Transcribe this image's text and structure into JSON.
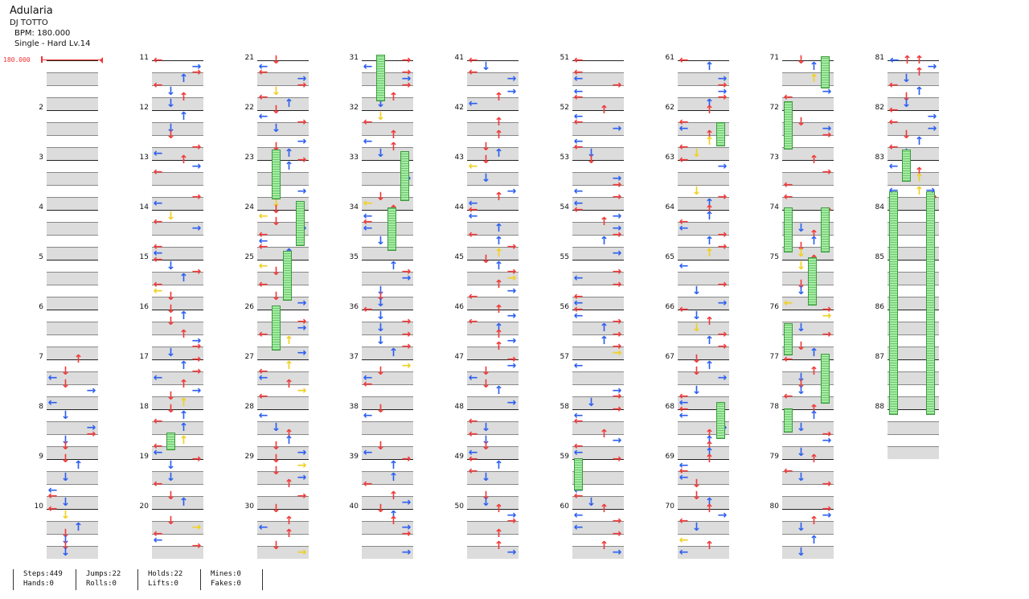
{
  "song": {
    "title": "Adularia",
    "artist": "DJ TOTTO",
    "bpm_text": "BPM: 180.000",
    "difficulty_text": "Single - Hard  Lv.14"
  },
  "bpm_marker": "180.000",
  "measure_labels": [
    "2",
    "3",
    "4",
    "5",
    "6",
    "7",
    "8",
    "9",
    "10",
    "11",
    "12",
    "13",
    "14",
    "15",
    "16",
    "17",
    "18",
    "19",
    "20",
    "21",
    "22",
    "23",
    "24",
    "25",
    "26",
    "27",
    "28",
    "29",
    "30",
    "31",
    "32",
    "33",
    "34",
    "35",
    "36",
    "37",
    "38",
    "39",
    "40",
    "41",
    "42",
    "43",
    "44",
    "45",
    "46",
    "47",
    "48",
    "49",
    "50",
    "51",
    "52",
    "53",
    "54",
    "55",
    "56",
    "57",
    "58",
    "59",
    "60",
    "61",
    "62",
    "63",
    "64",
    "65",
    "66",
    "67",
    "68",
    "69",
    "70",
    "71",
    "72",
    "73",
    "74",
    "75",
    "76",
    "77",
    "78",
    "79",
    "80",
    "81",
    "82",
    "83",
    "84",
    "85",
    "86",
    "87",
    "88"
  ],
  "stats": {
    "steps": "Steps:449",
    "hands": "Hands:0",
    "jumps": "Jumps:22",
    "rolls": "Rolls:0",
    "holds": "Holds:22",
    "lifts": "Lifts:0",
    "mines": "Mines:0",
    "fakes": "Fakes:0"
  },
  "colors": {
    "quarter_arrow": "#f03a3a",
    "eighth_arrow": "#2c5ff0",
    "sixteenth_arrow": "#f0d020",
    "hold_body": "#8fe08f",
    "band": "#dcdcdc"
  },
  "icons": {
    "left": "arrow-left-icon",
    "down": "arrow-down-icon",
    "up": "arrow-up-icon",
    "right": "arrow-right-icon"
  }
}
